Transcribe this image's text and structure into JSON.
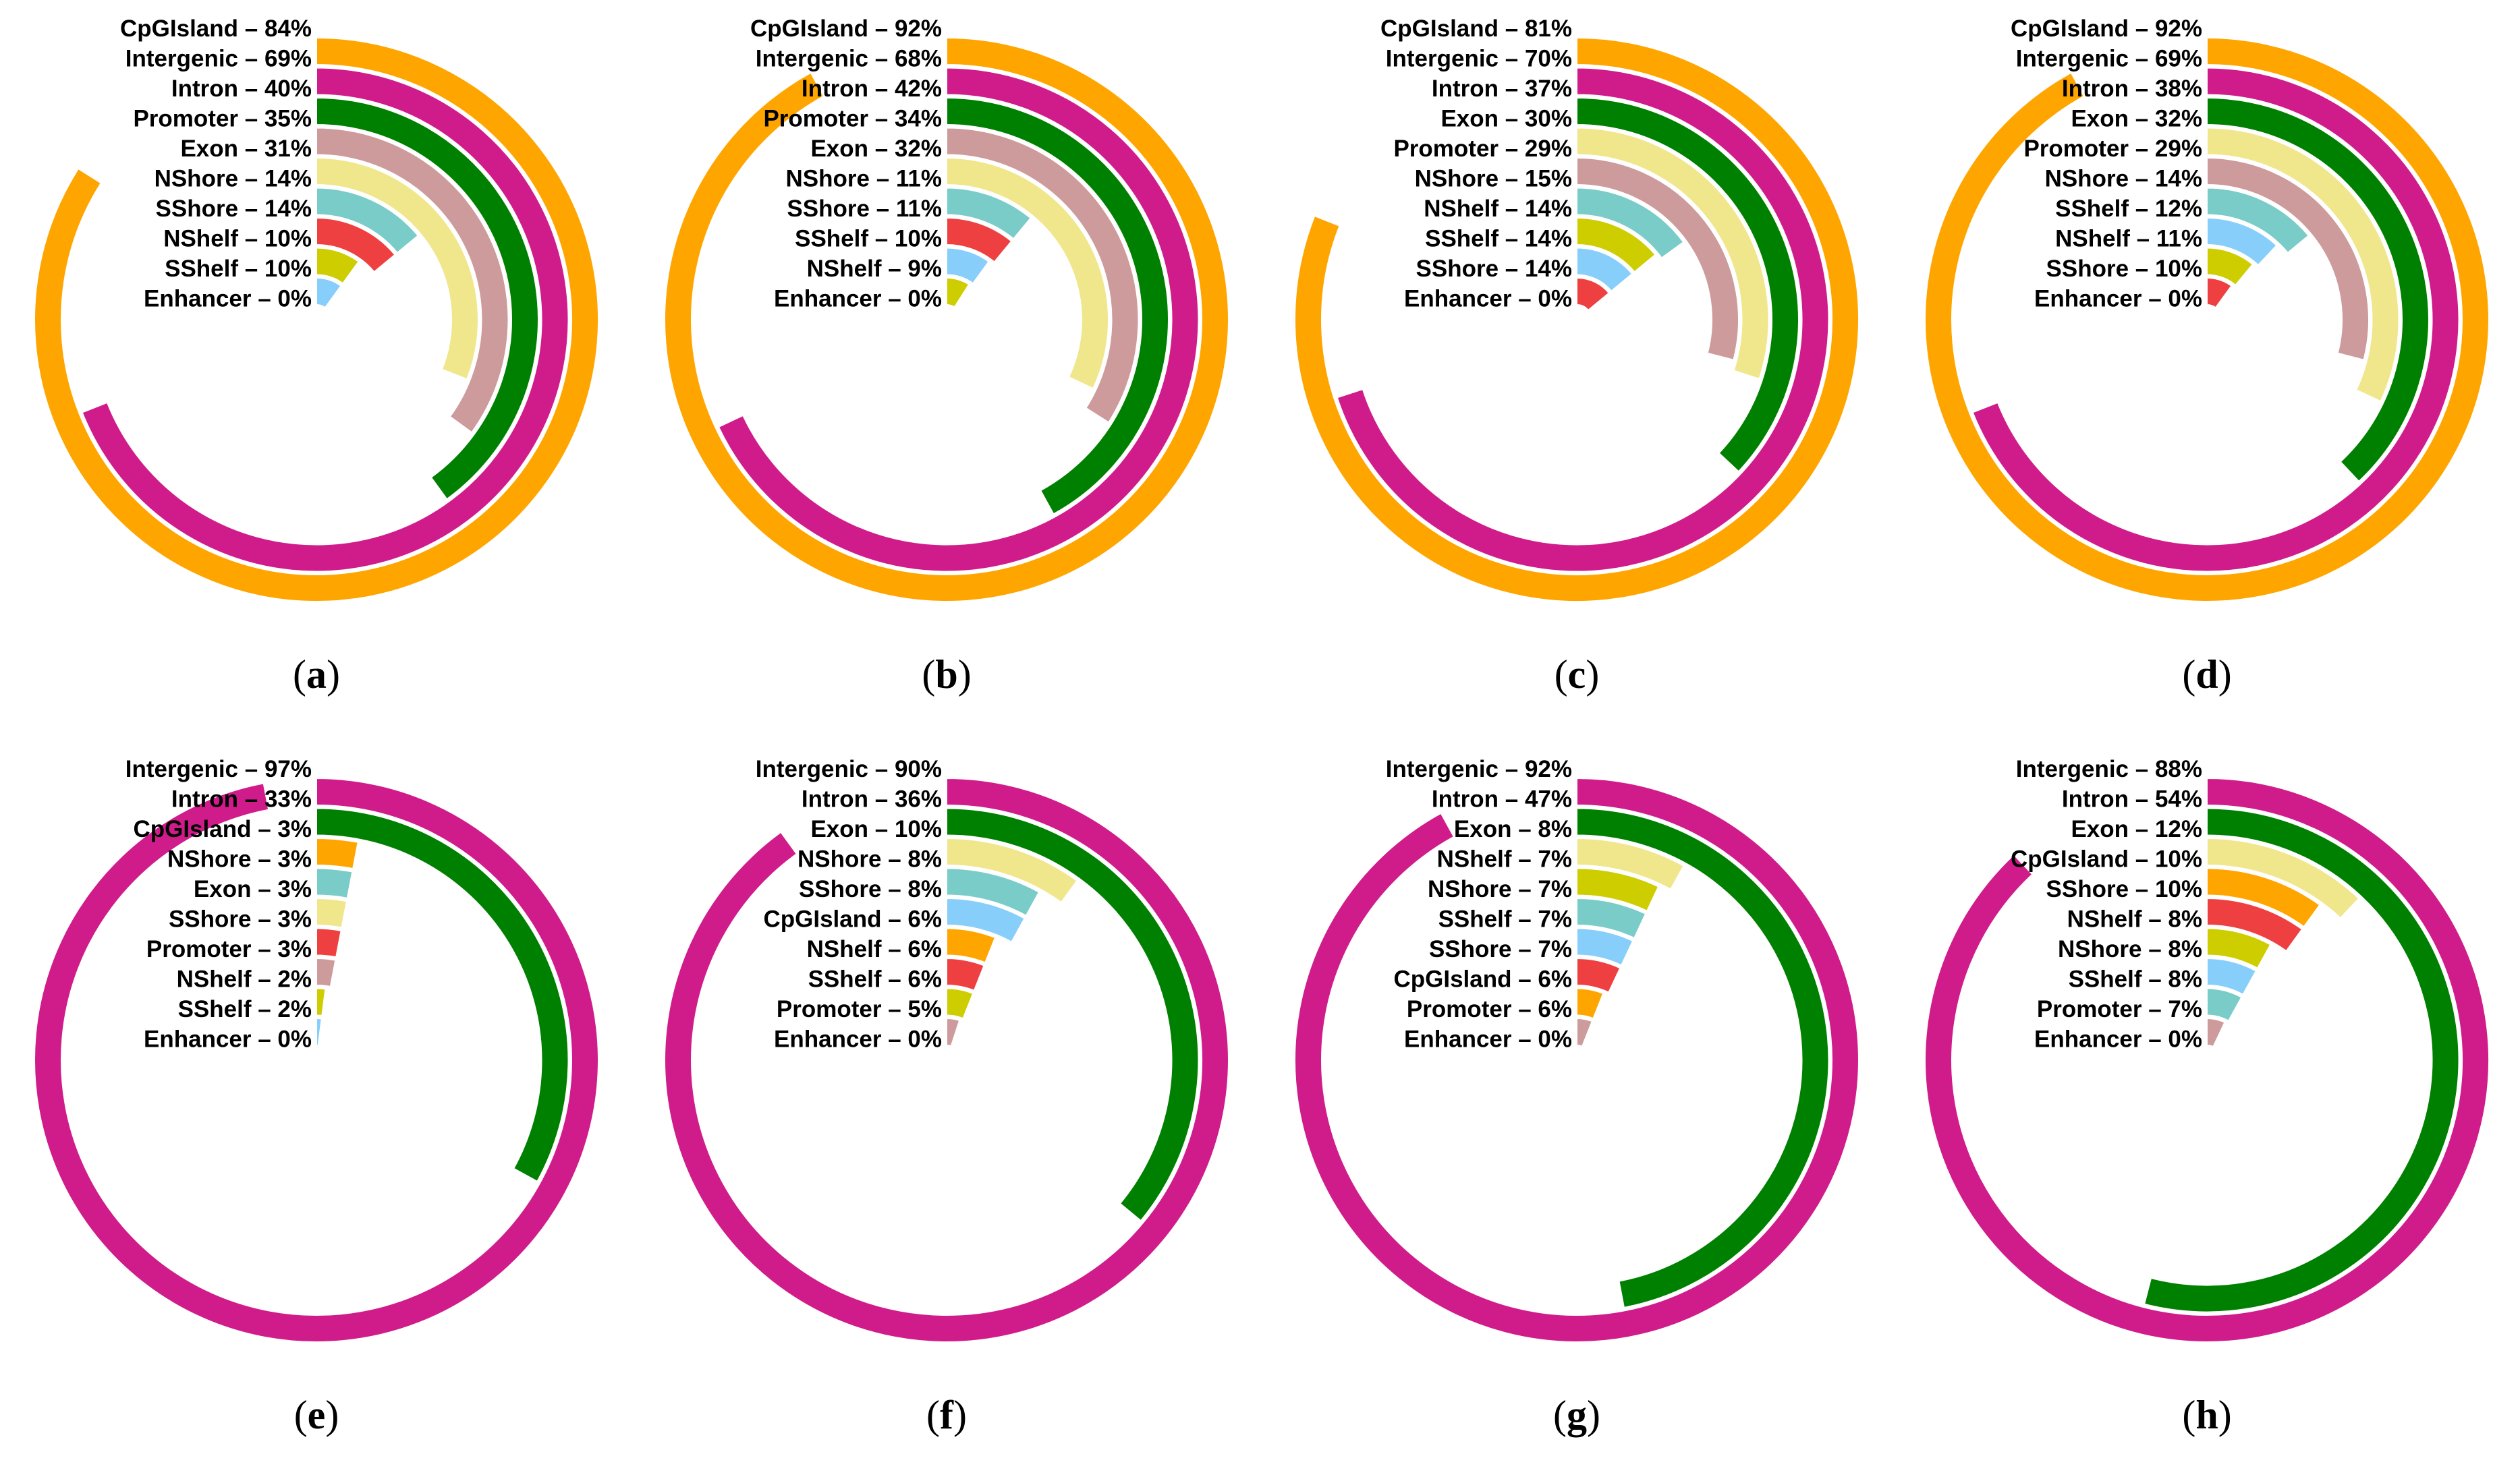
{
  "chart_data": [
    {
      "panel": "(a)",
      "type": "radial-bar",
      "unit": "%",
      "max": 100,
      "series": [
        {
          "name": "CpGIsland",
          "value": 84,
          "color": "#FFA500"
        },
        {
          "name": "Intergenic",
          "value": 69,
          "color": "#D01C8B"
        },
        {
          "name": "Intron",
          "value": 40,
          "color": "#008000"
        },
        {
          "name": "Promoter",
          "value": 35,
          "color": "#CD9B9B"
        },
        {
          "name": "Exon",
          "value": 31,
          "color": "#F0E68C"
        },
        {
          "name": "NShore",
          "value": 14,
          "color": "#7ACCC8"
        },
        {
          "name": "SShore",
          "value": 14,
          "color": "#EE4040"
        },
        {
          "name": "NShelf",
          "value": 10,
          "color": "#CDCD00"
        },
        {
          "name": "SShelf",
          "value": 10,
          "color": "#87CEFA"
        },
        {
          "name": "Enhancer",
          "value": 0,
          "color": "#9E9E9E"
        }
      ]
    },
    {
      "panel": "(b)",
      "type": "radial-bar",
      "unit": "%",
      "max": 100,
      "series": [
        {
          "name": "CpGIsland",
          "value": 92,
          "color": "#FFA500"
        },
        {
          "name": "Intergenic",
          "value": 68,
          "color": "#D01C8B"
        },
        {
          "name": "Intron",
          "value": 42,
          "color": "#008000"
        },
        {
          "name": "Promoter",
          "value": 34,
          "color": "#CD9B9B"
        },
        {
          "name": "Exon",
          "value": 32,
          "color": "#F0E68C"
        },
        {
          "name": "NShore",
          "value": 11,
          "color": "#7ACCC8"
        },
        {
          "name": "SShore",
          "value": 11,
          "color": "#EE4040"
        },
        {
          "name": "SShelf",
          "value": 10,
          "color": "#87CEFA"
        },
        {
          "name": "NShelf",
          "value": 9,
          "color": "#CDCD00"
        },
        {
          "name": "Enhancer",
          "value": 0,
          "color": "#9E9E9E"
        }
      ]
    },
    {
      "panel": "(c)",
      "type": "radial-bar",
      "unit": "%",
      "max": 100,
      "series": [
        {
          "name": "CpGIsland",
          "value": 81,
          "color": "#FFA500"
        },
        {
          "name": "Intergenic",
          "value": 70,
          "color": "#D01C8B"
        },
        {
          "name": "Intron",
          "value": 37,
          "color": "#008000"
        },
        {
          "name": "Exon",
          "value": 30,
          "color": "#F0E68C"
        },
        {
          "name": "Promoter",
          "value": 29,
          "color": "#CD9B9B"
        },
        {
          "name": "NShore",
          "value": 15,
          "color": "#7ACCC8"
        },
        {
          "name": "NShelf",
          "value": 14,
          "color": "#CDCD00"
        },
        {
          "name": "SShelf",
          "value": 14,
          "color": "#87CEFA"
        },
        {
          "name": "SShore",
          "value": 14,
          "color": "#EE4040"
        },
        {
          "name": "Enhancer",
          "value": 0,
          "color": "#9E9E9E"
        }
      ]
    },
    {
      "panel": "(d)",
      "type": "radial-bar",
      "unit": "%",
      "max": 100,
      "series": [
        {
          "name": "CpGIsland",
          "value": 92,
          "color": "#FFA500"
        },
        {
          "name": "Intergenic",
          "value": 69,
          "color": "#D01C8B"
        },
        {
          "name": "Intron",
          "value": 38,
          "color": "#008000"
        },
        {
          "name": "Exon",
          "value": 32,
          "color": "#F0E68C"
        },
        {
          "name": "Promoter",
          "value": 29,
          "color": "#CD9B9B"
        },
        {
          "name": "NShore",
          "value": 14,
          "color": "#7ACCC8"
        },
        {
          "name": "SShelf",
          "value": 12,
          "color": "#87CEFA"
        },
        {
          "name": "NShelf",
          "value": 11,
          "color": "#CDCD00"
        },
        {
          "name": "SShore",
          "value": 10,
          "color": "#EE4040"
        },
        {
          "name": "Enhancer",
          "value": 0,
          "color": "#9E9E9E"
        }
      ]
    },
    {
      "panel": "(e)",
      "type": "radial-bar",
      "unit": "%",
      "max": 100,
      "series": [
        {
          "name": "Intergenic",
          "value": 97,
          "color": "#D01C8B"
        },
        {
          "name": "Intron",
          "value": 33,
          "color": "#008000"
        },
        {
          "name": "CpGIsland",
          "value": 3,
          "color": "#FFA500"
        },
        {
          "name": "NShore",
          "value": 3,
          "color": "#7ACCC8"
        },
        {
          "name": "Exon",
          "value": 3,
          "color": "#F0E68C"
        },
        {
          "name": "SShore",
          "value": 3,
          "color": "#EE4040"
        },
        {
          "name": "Promoter",
          "value": 3,
          "color": "#CD9B9B"
        },
        {
          "name": "NShelf",
          "value": 2,
          "color": "#CDCD00"
        },
        {
          "name": "SShelf",
          "value": 2,
          "color": "#87CEFA"
        },
        {
          "name": "Enhancer",
          "value": 0,
          "color": "#9E9E9E"
        }
      ]
    },
    {
      "panel": "(f)",
      "type": "radial-bar",
      "unit": "%",
      "max": 100,
      "series": [
        {
          "name": "Intergenic",
          "value": 90,
          "color": "#D01C8B"
        },
        {
          "name": "Intron",
          "value": 36,
          "color": "#008000"
        },
        {
          "name": "Exon",
          "value": 10,
          "color": "#F0E68C"
        },
        {
          "name": "NShore",
          "value": 8,
          "color": "#7ACCC8"
        },
        {
          "name": "SShore",
          "value": 8,
          "color": "#87CEFA"
        },
        {
          "name": "CpGIsland",
          "value": 6,
          "color": "#FFA500"
        },
        {
          "name": "NShelf",
          "value": 6,
          "color": "#EE4040"
        },
        {
          "name": "SShelf",
          "value": 6,
          "color": "#CDCD00"
        },
        {
          "name": "Promoter",
          "value": 5,
          "color": "#CD9B9B"
        },
        {
          "name": "Enhancer",
          "value": 0,
          "color": "#9E9E9E"
        }
      ]
    },
    {
      "panel": "(g)",
      "type": "radial-bar",
      "unit": "%",
      "max": 100,
      "series": [
        {
          "name": "Intergenic",
          "value": 92,
          "color": "#D01C8B"
        },
        {
          "name": "Intron",
          "value": 47,
          "color": "#008000"
        },
        {
          "name": "Exon",
          "value": 8,
          "color": "#F0E68C"
        },
        {
          "name": "NShelf",
          "value": 7,
          "color": "#CDCD00"
        },
        {
          "name": "NShore",
          "value": 7,
          "color": "#7ACCC8"
        },
        {
          "name": "SShelf",
          "value": 7,
          "color": "#87CEFA"
        },
        {
          "name": "SShore",
          "value": 7,
          "color": "#EE4040"
        },
        {
          "name": "CpGIsland",
          "value": 6,
          "color": "#FFA500"
        },
        {
          "name": "Promoter",
          "value": 6,
          "color": "#CD9B9B"
        },
        {
          "name": "Enhancer",
          "value": 0,
          "color": "#9E9E9E"
        }
      ]
    },
    {
      "panel": "(h)",
      "type": "radial-bar",
      "unit": "%",
      "max": 100,
      "series": [
        {
          "name": "Intergenic",
          "value": 88,
          "color": "#D01C8B"
        },
        {
          "name": "Intron",
          "value": 54,
          "color": "#008000"
        },
        {
          "name": "Exon",
          "value": 12,
          "color": "#F0E68C"
        },
        {
          "name": "CpGIsland",
          "value": 10,
          "color": "#FFA500"
        },
        {
          "name": "SShore",
          "value": 10,
          "color": "#EE4040"
        },
        {
          "name": "NShelf",
          "value": 8,
          "color": "#CDCD00"
        },
        {
          "name": "NShore",
          "value": 8,
          "color": "#87CEFA"
        },
        {
          "name": "SShelf",
          "value": 8,
          "color": "#7ACCC8"
        },
        {
          "name": "Promoter",
          "value": 7,
          "color": "#CD9B9B"
        },
        {
          "name": "Enhancer",
          "value": 0,
          "color": "#9E9E9E"
        }
      ]
    }
  ]
}
